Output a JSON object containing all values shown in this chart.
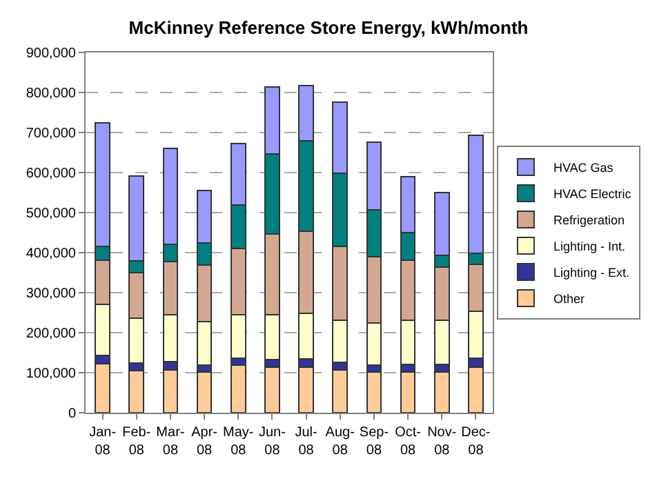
{
  "chart_data": {
    "type": "bar",
    "title": "McKinney Reference Store Energy, kWh/month",
    "stacked": true,
    "categories": [
      "Jan-08",
      "Feb-08",
      "Mar-08",
      "Apr-08",
      "May-08",
      "Jun-08",
      "Jul-08",
      "Aug-08",
      "Sep-08",
      "Oct-08",
      "Nov-08",
      "Dec-08"
    ],
    "series": [
      {
        "name": "Other",
        "color": "#ffcc99",
        "values": [
          123000,
          106000,
          107000,
          101000,
          119000,
          114000,
          114000,
          107000,
          101000,
          101000,
          101000,
          114000
        ]
      },
      {
        "name": "Lighting - Ext.",
        "color": "#333399",
        "values": [
          20000,
          18000,
          20000,
          18000,
          18000,
          19000,
          20000,
          19000,
          18000,
          19000,
          19000,
          23000
        ]
      },
      {
        "name": "Lighting - Int.",
        "color": "#ffffcc",
        "values": [
          127000,
          112000,
          117000,
          108000,
          107000,
          111000,
          115000,
          105000,
          105000,
          111000,
          111000,
          116000
        ]
      },
      {
        "name": "Refrigeration",
        "color": "#d2a892",
        "values": [
          111000,
          114000,
          133000,
          142000,
          166000,
          203000,
          204000,
          185000,
          166000,
          150000,
          133000,
          118000
        ]
      },
      {
        "name": "HVAC Electric",
        "color": "#008080",
        "values": [
          35000,
          29000,
          43000,
          55000,
          109000,
          200000,
          226000,
          183000,
          117000,
          69000,
          29000,
          28000
        ]
      },
      {
        "name": "HVAC Gas",
        "color": "#9999ff",
        "values": [
          308000,
          212000,
          241000,
          132000,
          154000,
          166000,
          138000,
          177000,
          169000,
          139000,
          157000,
          294000
        ]
      }
    ],
    "ylim": [
      0,
      900000
    ],
    "yticks": [
      {
        "value": 0,
        "label": "0"
      },
      {
        "value": 100000,
        "label": "100,000"
      },
      {
        "value": 200000,
        "label": "200,000"
      },
      {
        "value": 300000,
        "label": "300,000"
      },
      {
        "value": 400000,
        "label": "400,000"
      },
      {
        "value": 500000,
        "label": "500,000"
      },
      {
        "value": 600000,
        "label": "600,000"
      },
      {
        "value": 700000,
        "label": "700,000"
      },
      {
        "value": 800000,
        "label": "800,000"
      },
      {
        "value": 900000,
        "label": "900,000"
      }
    ],
    "grid": "y",
    "legend": "right"
  }
}
